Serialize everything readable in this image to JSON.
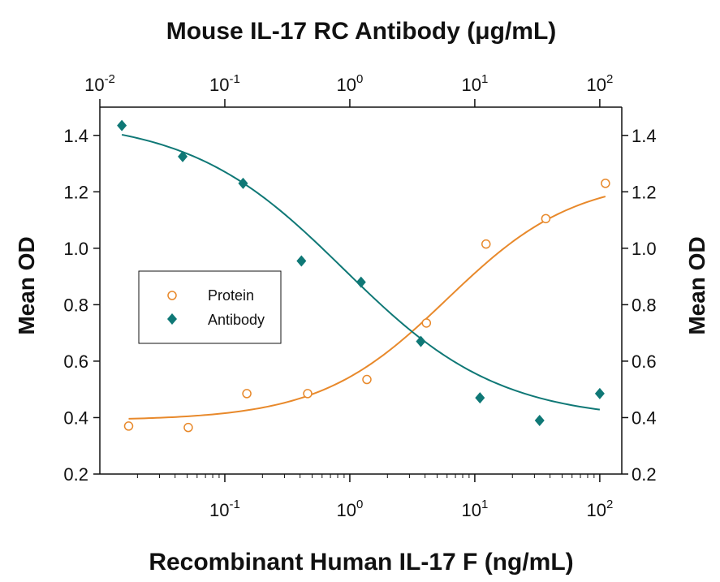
{
  "chart_data": {
    "type": "scatter",
    "title": "Mouse IL-17 RC  Antibody (μg/mL)",
    "xlabel": "Recombinant Human IL-17 F (ng/mL)",
    "ylabel": "Mean OD",
    "ylabel_right": "Mean OD",
    "x_scale": "log",
    "xlim": [
      0.01,
      150
    ],
    "ylim": [
      0.2,
      1.5
    ],
    "grid": false,
    "legend_position": "middle-left",
    "y_ticks": [
      "0.2",
      "0.4",
      "0.6",
      "0.8",
      "1.0",
      "1.2",
      "1.4"
    ],
    "x_ticks_bottom": [
      {
        "base": "10",
        "exp": "-1",
        "value": 0.1
      },
      {
        "base": "10",
        "exp": "0",
        "value": 1
      },
      {
        "base": "10",
        "exp": "1",
        "value": 10
      },
      {
        "base": "10",
        "exp": "2",
        "value": 100
      }
    ],
    "x_ticks_top": [
      {
        "base": "10",
        "exp": "-2",
        "value": 0.01
      },
      {
        "base": "10",
        "exp": "-1",
        "value": 0.1
      },
      {
        "base": "10",
        "exp": "0",
        "value": 1
      },
      {
        "base": "10",
        "exp": "1",
        "value": 10
      },
      {
        "base": "10",
        "exp": "2",
        "value": 100
      }
    ],
    "series": [
      {
        "name": "Protein",
        "color": "#e8892b",
        "marker": "open-circle",
        "axis": "bottom",
        "x": [
          0.017,
          0.051,
          0.15,
          0.46,
          1.37,
          4.1,
          12.3,
          37,
          111
        ],
        "y": [
          0.37,
          0.365,
          0.485,
          0.485,
          0.535,
          0.735,
          1.015,
          1.105,
          1.23
        ],
        "fit": {
          "bottom": 0.39,
          "top": 1.25,
          "ec50": 6.0,
          "hill": 0.85
        }
      },
      {
        "name": "Antibody",
        "color": "#0f7876",
        "marker": "filled-diamond",
        "axis": "top",
        "x": [
          0.015,
          0.046,
          0.14,
          0.41,
          1.23,
          3.7,
          11,
          33,
          100
        ],
        "y": [
          1.435,
          1.325,
          1.23,
          0.955,
          0.88,
          0.67,
          0.47,
          0.39,
          0.485
        ],
        "fit": {
          "bottom": 0.39,
          "top": 1.46,
          "ec50": 0.9,
          "hill": 0.7
        }
      }
    ]
  }
}
